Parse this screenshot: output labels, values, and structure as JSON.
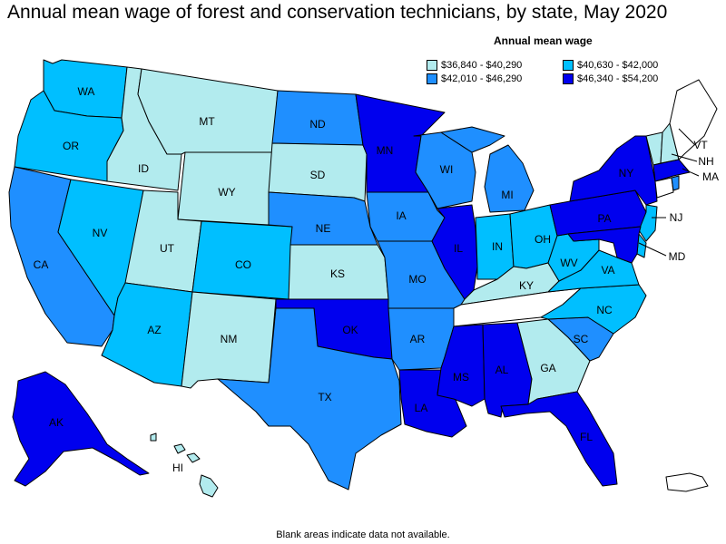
{
  "title": "Annual mean wage of forest and conservation technicians, by state, May 2020",
  "legend": {
    "title": "Annual mean wage",
    "bins": [
      {
        "label": "$36,840 - $40,290",
        "color": "#b2ebee"
      },
      {
        "label": "$40,630 - $42,000",
        "color": "#00bfff"
      },
      {
        "label": "$42,010 - $46,290",
        "color": "#1f8fff"
      },
      {
        "label": "$46,340 - $54,200",
        "color": "#0000ee"
      }
    ]
  },
  "no_data_color": "#ffffff",
  "footnote": "Blank areas indicate data not available.",
  "states": {
    "WA": {
      "label": "WA",
      "bin": 1
    },
    "OR": {
      "label": "OR",
      "bin": 1
    },
    "CA": {
      "label": "CA",
      "bin": 2
    },
    "ID": {
      "label": "ID",
      "bin": 0
    },
    "NV": {
      "label": "NV",
      "bin": 1
    },
    "MT": {
      "label": "MT",
      "bin": 0
    },
    "WY": {
      "label": "WY",
      "bin": 0
    },
    "UT": {
      "label": "UT",
      "bin": 0
    },
    "AZ": {
      "label": "AZ",
      "bin": 1
    },
    "CO": {
      "label": "CO",
      "bin": 1
    },
    "NM": {
      "label": "NM",
      "bin": 0
    },
    "ND": {
      "label": "ND",
      "bin": 2
    },
    "SD": {
      "label": "SD",
      "bin": 0
    },
    "NE": {
      "label": "NE",
      "bin": 2
    },
    "KS": {
      "label": "KS",
      "bin": 0
    },
    "OK": {
      "label": "OK",
      "bin": 3
    },
    "TX": {
      "label": "TX",
      "bin": 2
    },
    "MN": {
      "label": "MN",
      "bin": 3
    },
    "IA": {
      "label": "IA",
      "bin": 2
    },
    "MO": {
      "label": "MO",
      "bin": 2
    },
    "AR": {
      "label": "AR",
      "bin": 2
    },
    "LA": {
      "label": "LA",
      "bin": 3
    },
    "WI": {
      "label": "WI",
      "bin": 2
    },
    "IL": {
      "label": "IL",
      "bin": 3
    },
    "MI": {
      "label": "MI",
      "bin": 2
    },
    "IN": {
      "label": "IN",
      "bin": 1
    },
    "OH": {
      "label": "OH",
      "bin": 1
    },
    "KY": {
      "label": "KY",
      "bin": 0
    },
    "TN": {
      "label": "",
      "bin": null
    },
    "MS": {
      "label": "MS",
      "bin": 3
    },
    "AL": {
      "label": "AL",
      "bin": 3
    },
    "GA": {
      "label": "GA",
      "bin": 0
    },
    "FL": {
      "label": "FL",
      "bin": 3
    },
    "SC": {
      "label": "SC",
      "bin": 2
    },
    "NC": {
      "label": "NC",
      "bin": 1
    },
    "VA": {
      "label": "VA",
      "bin": 1
    },
    "WV": {
      "label": "WV",
      "bin": 1
    },
    "PA": {
      "label": "PA",
      "bin": 3
    },
    "NY": {
      "label": "NY",
      "bin": 3
    },
    "NJ": {
      "label": "NJ",
      "bin": 1
    },
    "MD": {
      "label": "MD",
      "bin": 3
    },
    "DE": {
      "label": "",
      "bin": 1
    },
    "VT": {
      "label": "VT",
      "bin": 0
    },
    "NH": {
      "label": "NH",
      "bin": 0
    },
    "ME": {
      "label": "ME",
      "bin": null
    },
    "MA": {
      "label": "MA",
      "bin": 3
    },
    "CT": {
      "label": "",
      "bin": null
    },
    "RI": {
      "label": "",
      "bin": 2
    },
    "AK": {
      "label": "AK",
      "bin": 3
    },
    "HI": {
      "label": "HI",
      "bin": 0
    },
    "PR": {
      "label": "",
      "bin": null
    }
  }
}
